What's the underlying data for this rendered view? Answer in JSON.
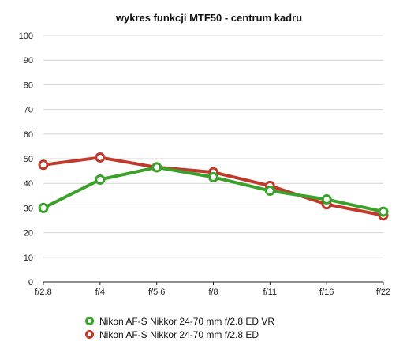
{
  "chart_data": {
    "type": "line",
    "title": "wykres funkcji MTF50 - centrum kadru",
    "categories": [
      "f/2.8",
      "f/4",
      "f/5,6",
      "f/8",
      "f/11",
      "f/16",
      "f/22"
    ],
    "ylim": [
      0,
      100
    ],
    "yticks": [
      0,
      10,
      20,
      30,
      40,
      50,
      60,
      70,
      80,
      90,
      100
    ],
    "grid": true,
    "legend_position": "bottom",
    "series": [
      {
        "name": "Nikon AF-S Nikkor 24-70 mm f/2.8 ED VR",
        "color": "#3aa22a",
        "values": [
          30,
          41.5,
          46.5,
          42.5,
          37,
          33.5,
          28.5
        ]
      },
      {
        "name": "Nikon AF-S Nikkor 24-70 mm f/2.8 ED",
        "color": "#c0392b",
        "values": [
          47.5,
          50.5,
          46.5,
          44.5,
          39,
          31.5,
          27
        ]
      }
    ]
  }
}
